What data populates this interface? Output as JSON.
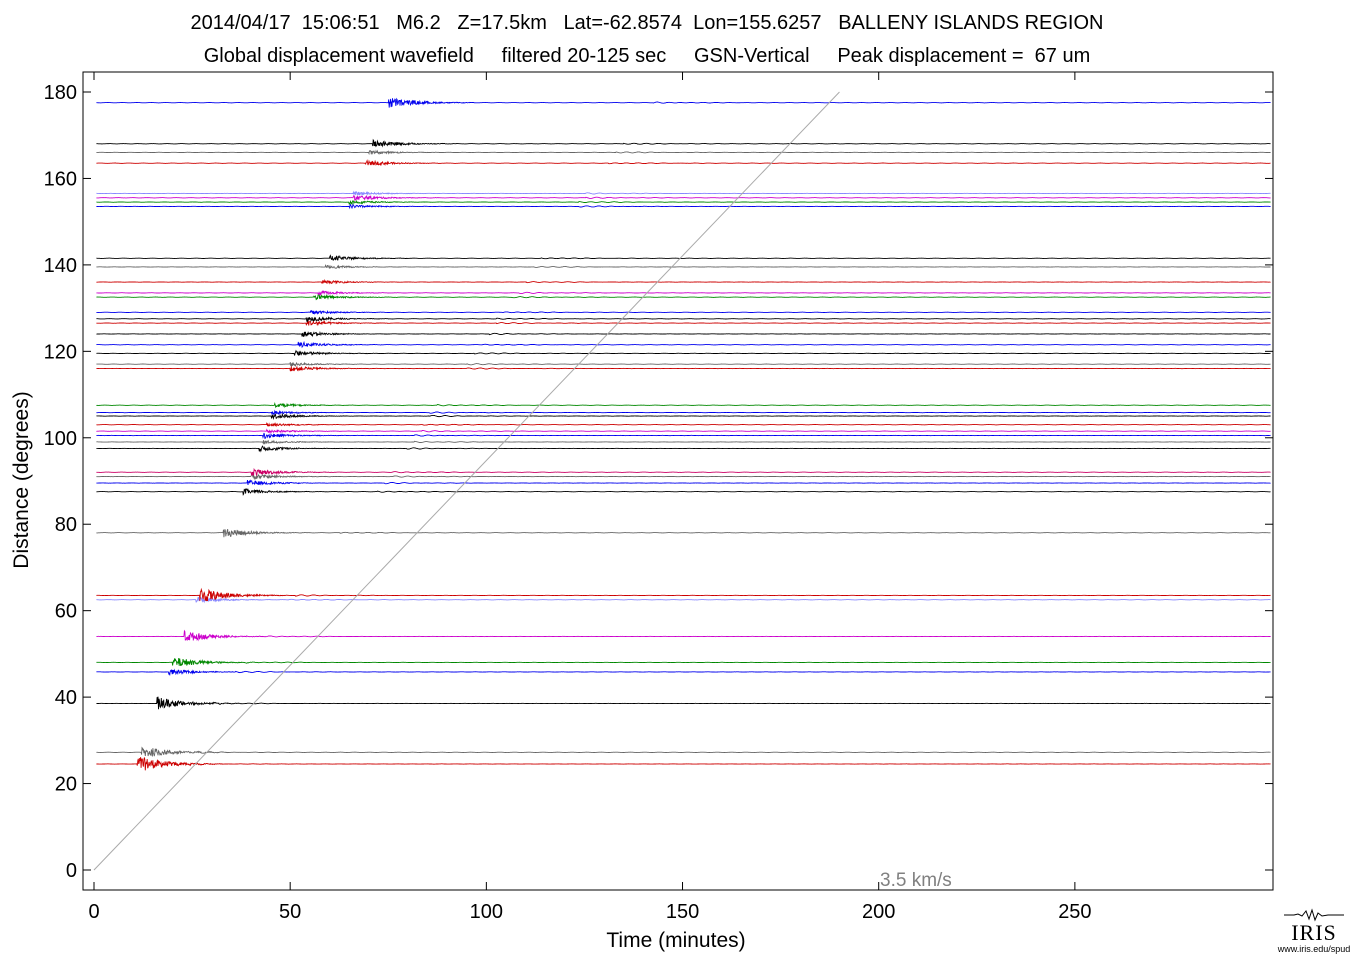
{
  "title_line1": "2014/04/17  15:06:51   M6.2   Z=17.5km   Lat=-62.8574  Lon=155.6257   BALLENY ISLANDS REGION",
  "title_line2": "Global displacement wavefield     filtered 20-125 sec     GSN-Vertical     Peak displacement =  67 um",
  "chart_data": {
    "type": "line",
    "xlabel": "Time (minutes)",
    "ylabel": "Distance (degrees)",
    "xlim": [
      0,
      300
    ],
    "ylim": [
      -5,
      185
    ],
    "xticks": [
      0,
      50,
      100,
      150,
      200,
      250
    ],
    "yticks": [
      0,
      20,
      40,
      60,
      80,
      100,
      120,
      140,
      160,
      180
    ],
    "grid": false,
    "reference_line": {
      "label": "3.5 km/s",
      "from": [
        0,
        0
      ],
      "to": [
        190,
        180
      ]
    },
    "traces": [
      {
        "distance": 24.5,
        "color": "#cc0000",
        "onset": 11,
        "amp": 9
      },
      {
        "distance": 27.2,
        "color": "#666666",
        "onset": 12,
        "amp": 7
      },
      {
        "distance": 38.5,
        "color": "#000000",
        "onset": 16,
        "amp": 7
      },
      {
        "distance": 45.8,
        "color": "#0000ee",
        "onset": 19,
        "amp": 3
      },
      {
        "distance": 48.0,
        "color": "#008800",
        "onset": 20,
        "amp": 6
      },
      {
        "distance": 54.0,
        "color": "#cc00cc",
        "onset": 23,
        "amp": 6
      },
      {
        "distance": 62.5,
        "color": "#8888ff",
        "onset": 26,
        "amp": 3
      },
      {
        "distance": 63.5,
        "color": "#cc0000",
        "onset": 27,
        "amp": 8
      },
      {
        "distance": 78.0,
        "color": "#666666",
        "onset": 33,
        "amp": 5
      },
      {
        "distance": 87.5,
        "color": "#000000",
        "onset": 38,
        "amp": 3
      },
      {
        "distance": 89.5,
        "color": "#0000ee",
        "onset": 39,
        "amp": 3
      },
      {
        "distance": 91.0,
        "color": "#666666",
        "onset": 40,
        "amp": 3
      },
      {
        "distance": 92.0,
        "color": "#cc0066",
        "onset": 40,
        "amp": 4
      },
      {
        "distance": 97.5,
        "color": "#000000",
        "onset": 42,
        "amp": 3
      },
      {
        "distance": 99.0,
        "color": "#666666",
        "onset": 43,
        "amp": 2
      },
      {
        "distance": 100.5,
        "color": "#0000ee",
        "onset": 43,
        "amp": 3
      },
      {
        "distance": 101.5,
        "color": "#cc00cc",
        "onset": 44,
        "amp": 2
      },
      {
        "distance": 103.0,
        "color": "#cc0000",
        "onset": 44,
        "amp": 2
      },
      {
        "distance": 105.0,
        "color": "#000000",
        "onset": 45,
        "amp": 3
      },
      {
        "distance": 105.8,
        "color": "#0000ee",
        "onset": 45,
        "amp": 2
      },
      {
        "distance": 107.5,
        "color": "#008800",
        "onset": 46,
        "amp": 2
      },
      {
        "distance": 116.0,
        "color": "#cc0000",
        "onset": 50,
        "amp": 3
      },
      {
        "distance": 117.0,
        "color": "#666666",
        "onset": 50,
        "amp": 2
      },
      {
        "distance": 119.5,
        "color": "#000000",
        "onset": 51,
        "amp": 3
      },
      {
        "distance": 121.5,
        "color": "#0000ee",
        "onset": 52,
        "amp": 3
      },
      {
        "distance": 124.0,
        "color": "#000000",
        "onset": 53,
        "amp": 3
      },
      {
        "distance": 126.5,
        "color": "#cc0000",
        "onset": 54,
        "amp": 3
      },
      {
        "distance": 127.5,
        "color": "#000000",
        "onset": 54,
        "amp": 3
      },
      {
        "distance": 129.0,
        "color": "#0000ee",
        "onset": 55,
        "amp": 2
      },
      {
        "distance": 132.5,
        "color": "#008800",
        "onset": 56,
        "amp": 3
      },
      {
        "distance": 133.5,
        "color": "#cc00cc",
        "onset": 57,
        "amp": 2
      },
      {
        "distance": 136.0,
        "color": "#cc0000",
        "onset": 58,
        "amp": 2
      },
      {
        "distance": 139.5,
        "color": "#666666",
        "onset": 59,
        "amp": 2
      },
      {
        "distance": 141.5,
        "color": "#000000",
        "onset": 60,
        "amp": 3
      },
      {
        "distance": 153.5,
        "color": "#0000ee",
        "onset": 65,
        "amp": 2
      },
      {
        "distance": 154.5,
        "color": "#008800",
        "onset": 65,
        "amp": 2
      },
      {
        "distance": 155.5,
        "color": "#cc00cc",
        "onset": 66,
        "amp": 3
      },
      {
        "distance": 156.5,
        "color": "#8888ff",
        "onset": 66,
        "amp": 2
      },
      {
        "distance": 163.5,
        "color": "#cc0000",
        "onset": 69,
        "amp": 3
      },
      {
        "distance": 166.0,
        "color": "#666666",
        "onset": 70,
        "amp": 2
      },
      {
        "distance": 168.0,
        "color": "#000000",
        "onset": 71,
        "amp": 4
      },
      {
        "distance": 177.5,
        "color": "#0000ee",
        "onset": 75,
        "amp": 6
      }
    ]
  },
  "logo": {
    "text": "IRIS",
    "url": "www.iris.edu/spud"
  }
}
